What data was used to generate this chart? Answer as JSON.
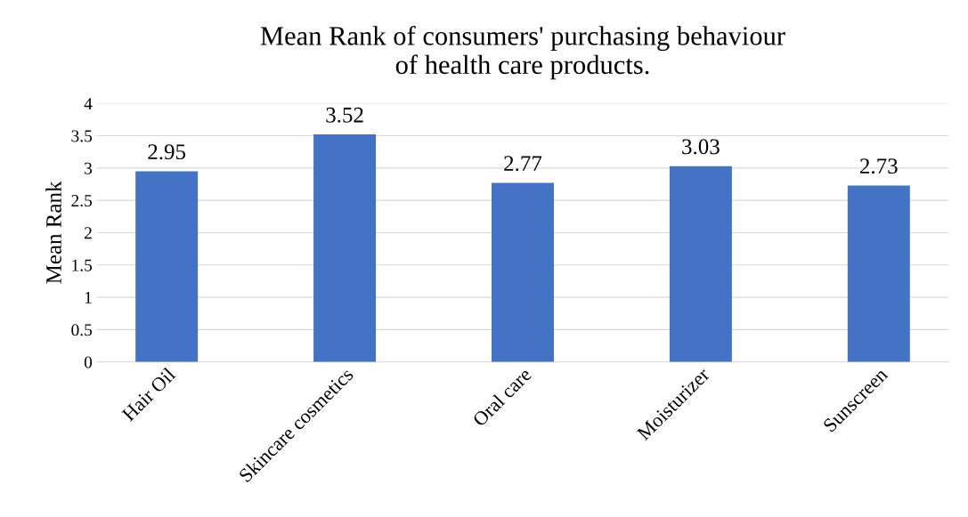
{
  "chart_data": {
    "type": "bar",
    "title": "Mean Rank of consumers' purchasing behaviour\nof health care products.",
    "ylabel": "Mean Rank",
    "categories": [
      "Hair Oil",
      "Skincare cosmetics",
      "Oral care",
      "Moisturizer",
      "Sunscreen"
    ],
    "values": [
      2.95,
      3.52,
      2.77,
      3.03,
      2.73
    ],
    "color": "#4472c4",
    "ylim": [
      0,
      4
    ],
    "yticks": [
      0,
      0.5,
      1,
      1.5,
      2,
      2.5,
      3,
      3.5,
      4
    ],
    "grid": "y",
    "data_labels": true
  }
}
